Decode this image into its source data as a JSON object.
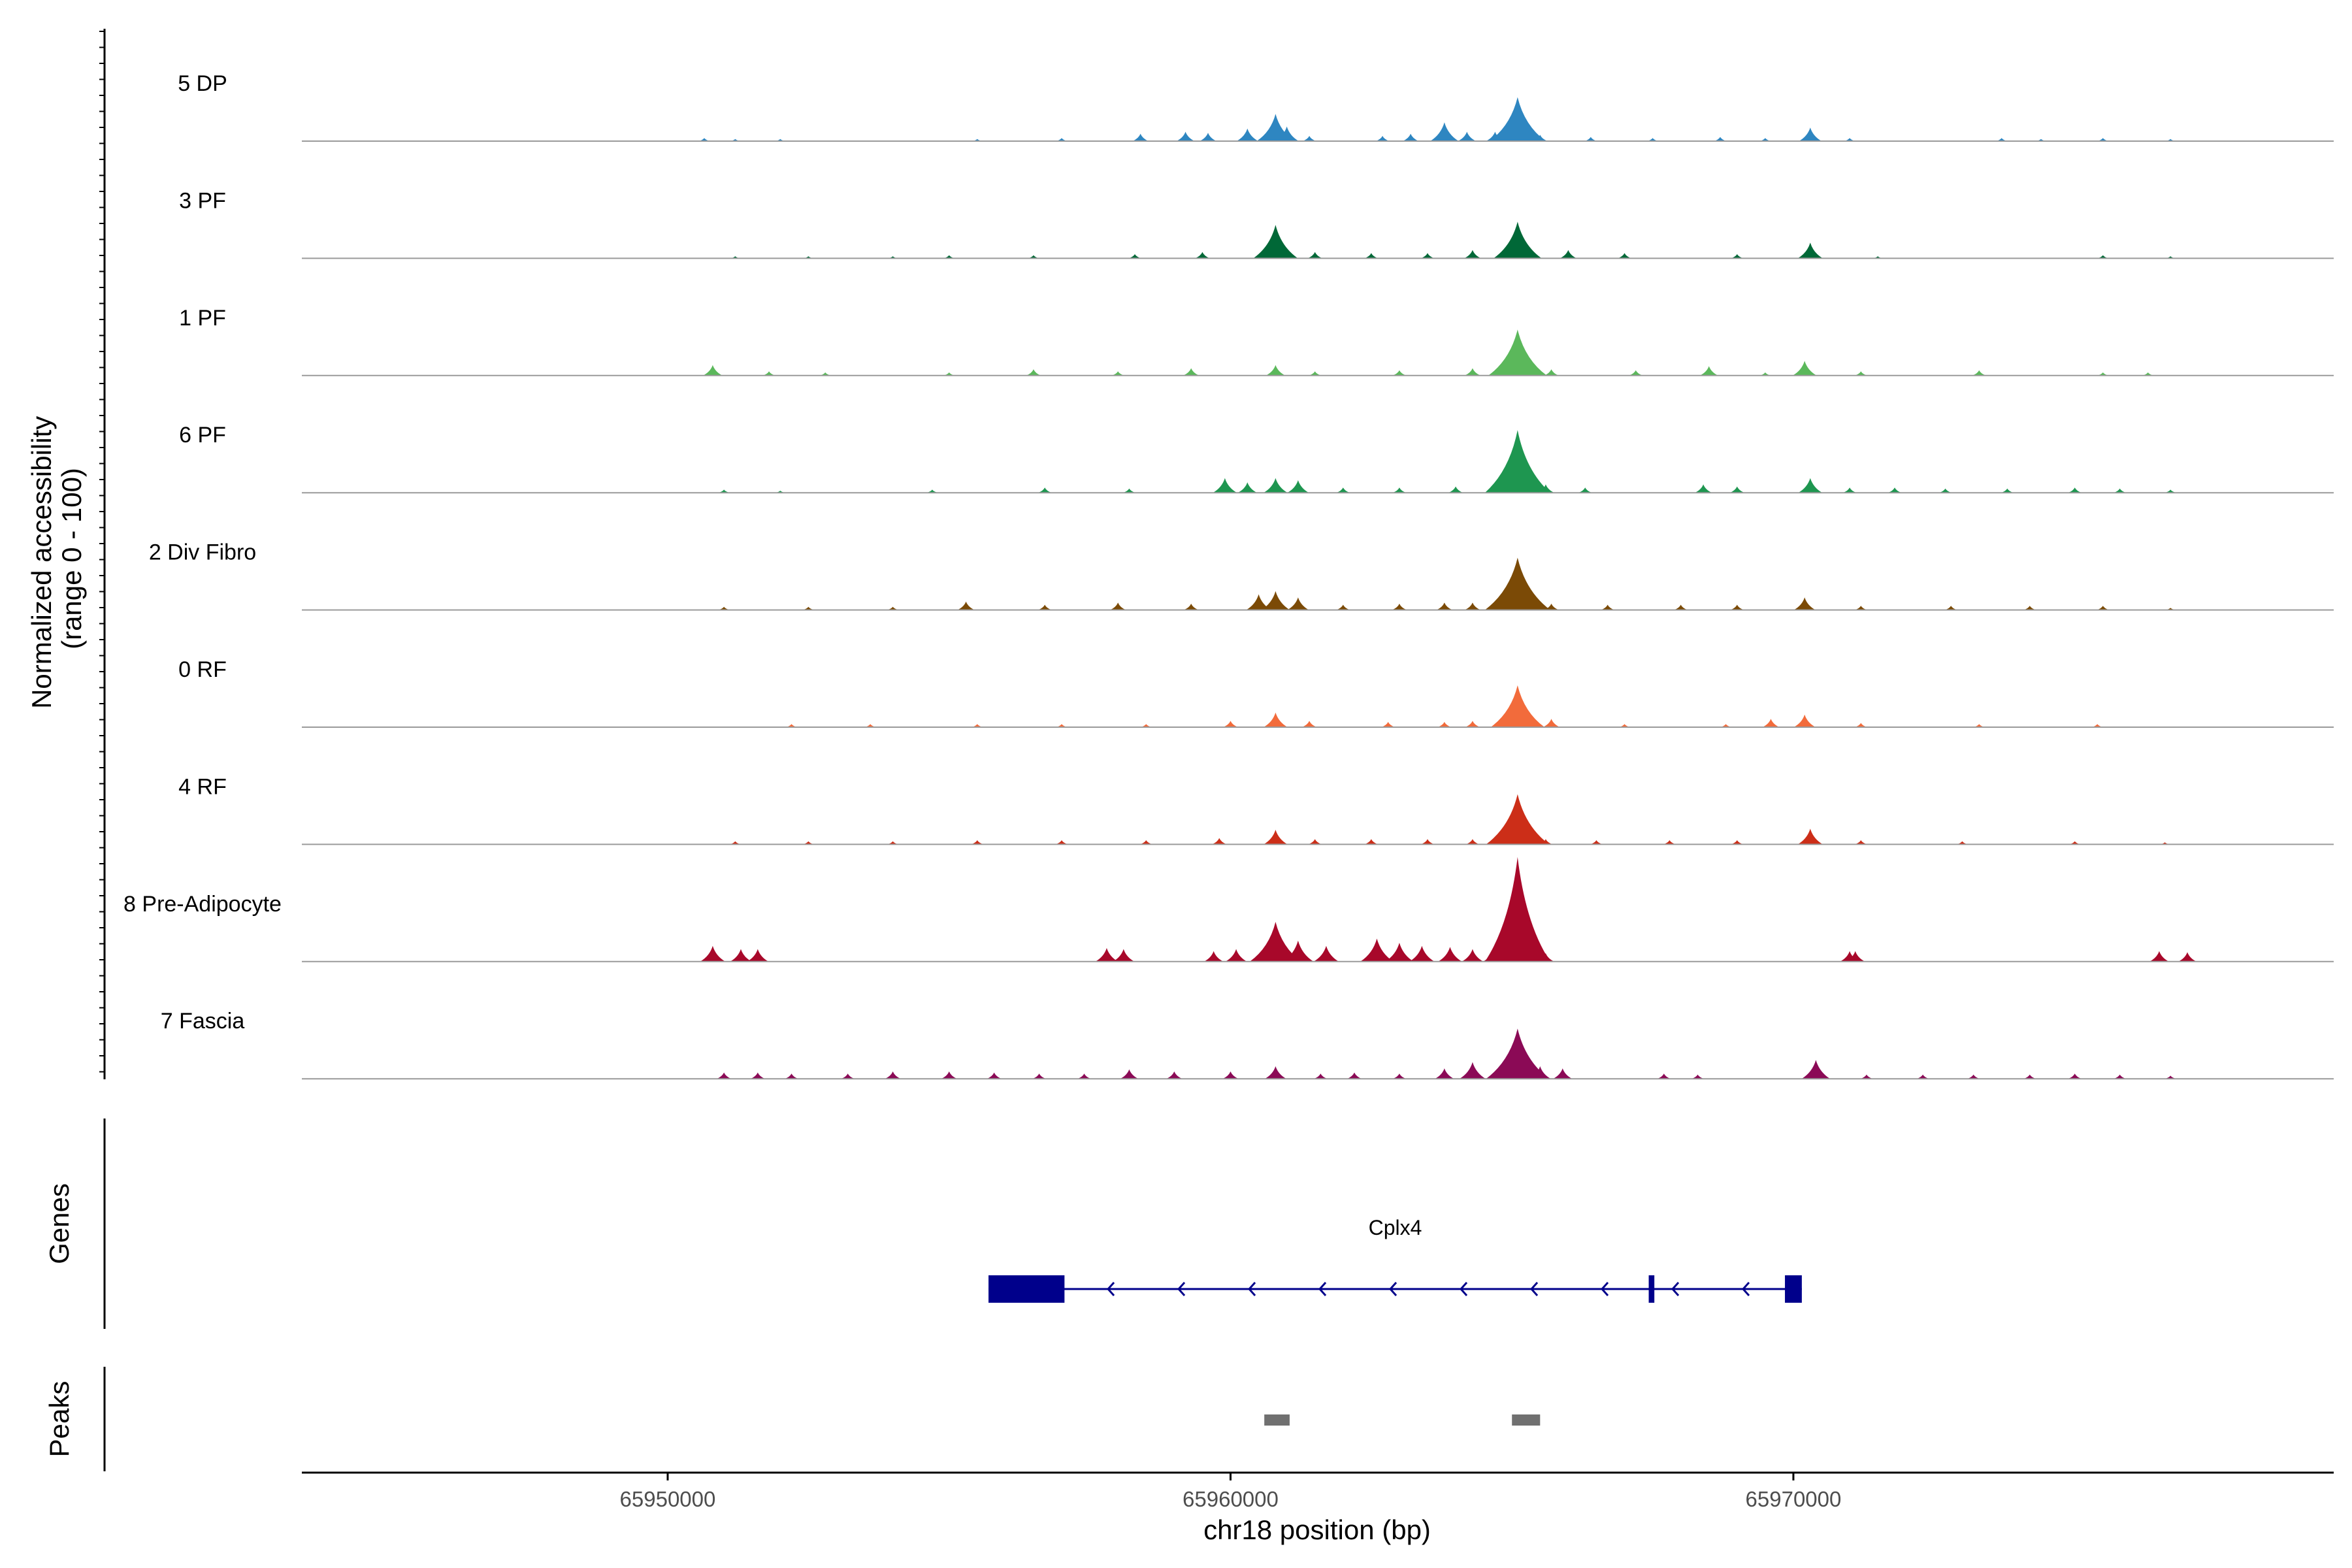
{
  "chart_data": {
    "type": "area",
    "title": "",
    "region": {
      "chrom": "chr18",
      "start": 65943500,
      "end": 65979600
    },
    "xlabel": "chr18 position (bp)",
    "xticks": [
      65950000,
      65960000,
      65970000
    ],
    "xtick_labels": [
      "65950000",
      "65960000",
      "65970000"
    ],
    "ylabel_line1": "Normalized accessibility",
    "ylabel_line2": "(range 0 - 100)",
    "ylim": [
      0,
      100
    ],
    "series": [
      {
        "name": "5 DP",
        "color": "#2E86C1",
        "points": [
          [
            65950650,
            3
          ],
          [
            65951200,
            2
          ],
          [
            65952000,
            2
          ],
          [
            65955500,
            2
          ],
          [
            65957000,
            3
          ],
          [
            65958400,
            7
          ],
          [
            65959200,
            9
          ],
          [
            65959600,
            8
          ],
          [
            65960300,
            12
          ],
          [
            65960800,
            26
          ],
          [
            65961000,
            14
          ],
          [
            65961400,
            5
          ],
          [
            65962700,
            5
          ],
          [
            65963200,
            7
          ],
          [
            65963800,
            18
          ],
          [
            65964200,
            9
          ],
          [
            65964700,
            9
          ],
          [
            65965100,
            42
          ],
          [
            65965500,
            6
          ],
          [
            65966400,
            4
          ],
          [
            65967500,
            3
          ],
          [
            65968700,
            4
          ],
          [
            65969500,
            3
          ],
          [
            65970300,
            13
          ],
          [
            65971000,
            3
          ],
          [
            65973700,
            3
          ],
          [
            65974400,
            2
          ],
          [
            65975500,
            3
          ],
          [
            65976700,
            2
          ]
        ]
      },
      {
        "name": "3 PF",
        "color": "#006837",
        "points": [
          [
            65951200,
            2
          ],
          [
            65952500,
            2
          ],
          [
            65954000,
            2
          ],
          [
            65955000,
            3
          ],
          [
            65956500,
            3
          ],
          [
            65958300,
            4
          ],
          [
            65959500,
            6
          ],
          [
            65960800,
            32
          ],
          [
            65961500,
            6
          ],
          [
            65962500,
            5
          ],
          [
            65963500,
            5
          ],
          [
            65964300,
            8
          ],
          [
            65965100,
            35
          ],
          [
            65966000,
            8
          ],
          [
            65967000,
            5
          ],
          [
            65969000,
            4
          ],
          [
            65970300,
            15
          ],
          [
            65971500,
            2
          ],
          [
            65975500,
            3
          ],
          [
            65976700,
            2
          ]
        ]
      },
      {
        "name": "1 PF",
        "color": "#5BB85B",
        "points": [
          [
            65950800,
            10
          ],
          [
            65951800,
            4
          ],
          [
            65952800,
            3
          ],
          [
            65955000,
            3
          ],
          [
            65956500,
            6
          ],
          [
            65958000,
            4
          ],
          [
            65959300,
            7
          ],
          [
            65960800,
            10
          ],
          [
            65961500,
            4
          ],
          [
            65963000,
            5
          ],
          [
            65964300,
            7
          ],
          [
            65965100,
            44
          ],
          [
            65965700,
            6
          ],
          [
            65967200,
            5
          ],
          [
            65968500,
            9
          ],
          [
            65969500,
            3
          ],
          [
            65970200,
            14
          ],
          [
            65971200,
            4
          ],
          [
            65973300,
            5
          ],
          [
            65975500,
            3
          ],
          [
            65976300,
            3
          ]
        ]
      },
      {
        "name": "6 PF",
        "color": "#1E9650",
        "points": [
          [
            65951000,
            3
          ],
          [
            65952000,
            2
          ],
          [
            65954700,
            3
          ],
          [
            65956700,
            5
          ],
          [
            65958200,
            4
          ],
          [
            65959900,
            14
          ],
          [
            65960300,
            10
          ],
          [
            65960800,
            14
          ],
          [
            65961200,
            12
          ],
          [
            65962000,
            5
          ],
          [
            65963000,
            5
          ],
          [
            65964000,
            6
          ],
          [
            65965100,
            60
          ],
          [
            65965600,
            8
          ],
          [
            65966300,
            5
          ],
          [
            65968400,
            8
          ],
          [
            65969000,
            6
          ],
          [
            65970300,
            14
          ],
          [
            65971000,
            5
          ],
          [
            65971800,
            5
          ],
          [
            65972700,
            4
          ],
          [
            65973800,
            4
          ],
          [
            65975000,
            5
          ],
          [
            65975800,
            4
          ],
          [
            65976700,
            3
          ]
        ]
      },
      {
        "name": "2 Div Fibro",
        "color": "#7B4A06",
        "points": [
          [
            65951000,
            3
          ],
          [
            65952500,
            3
          ],
          [
            65954000,
            3
          ],
          [
            65955300,
            8
          ],
          [
            65956700,
            5
          ],
          [
            65958000,
            7
          ],
          [
            65959300,
            6
          ],
          [
            65960500,
            15
          ],
          [
            65960800,
            18
          ],
          [
            65961200,
            12
          ],
          [
            65962000,
            5
          ],
          [
            65963000,
            6
          ],
          [
            65963800,
            7
          ],
          [
            65964300,
            7
          ],
          [
            65965100,
            50
          ],
          [
            65965700,
            6
          ],
          [
            65966700,
            5
          ],
          [
            65968000,
            5
          ],
          [
            65969000,
            5
          ],
          [
            65970200,
            12
          ],
          [
            65971200,
            4
          ],
          [
            65972800,
            4
          ],
          [
            65974200,
            4
          ],
          [
            65975500,
            4
          ],
          [
            65976700,
            2
          ]
        ]
      },
      {
        "name": "0 RF",
        "color": "#F26B3B",
        "points": [
          [
            65952200,
            3
          ],
          [
            65953600,
            3
          ],
          [
            65955500,
            3
          ],
          [
            65957000,
            3
          ],
          [
            65958500,
            3
          ],
          [
            65960000,
            6
          ],
          [
            65960800,
            14
          ],
          [
            65961400,
            6
          ],
          [
            65962800,
            5
          ],
          [
            65963800,
            5
          ],
          [
            65964300,
            6
          ],
          [
            65965100,
            40
          ],
          [
            65965700,
            8
          ],
          [
            65967000,
            3
          ],
          [
            65968800,
            3
          ],
          [
            65969600,
            8
          ],
          [
            65970200,
            12
          ],
          [
            65971200,
            4
          ],
          [
            65973300,
            3
          ],
          [
            65975400,
            3
          ]
        ]
      },
      {
        "name": "4 RF",
        "color": "#CC2E18",
        "points": [
          [
            65951200,
            3
          ],
          [
            65952500,
            3
          ],
          [
            65954000,
            3
          ],
          [
            65955500,
            4
          ],
          [
            65957000,
            4
          ],
          [
            65958500,
            4
          ],
          [
            65959800,
            6
          ],
          [
            65960800,
            14
          ],
          [
            65961500,
            5
          ],
          [
            65962500,
            5
          ],
          [
            65963500,
            5
          ],
          [
            65964300,
            5
          ],
          [
            65965100,
            48
          ],
          [
            65965600,
            5
          ],
          [
            65966500,
            4
          ],
          [
            65967800,
            4
          ],
          [
            65969000,
            4
          ],
          [
            65970300,
            15
          ],
          [
            65971200,
            4
          ],
          [
            65973000,
            3
          ],
          [
            65975000,
            3
          ],
          [
            65976600,
            2
          ]
        ]
      },
      {
        "name": "8 Pre-Adipocyte",
        "color": "#A8082A",
        "points": [
          [
            65950800,
            15
          ],
          [
            65951300,
            12
          ],
          [
            65951600,
            12
          ],
          [
            65957800,
            13
          ],
          [
            65958100,
            12
          ],
          [
            65959700,
            10
          ],
          [
            65960100,
            12
          ],
          [
            65960800,
            38
          ],
          [
            65961200,
            20
          ],
          [
            65961700,
            15
          ],
          [
            65962600,
            22
          ],
          [
            65963000,
            18
          ],
          [
            65963400,
            15
          ],
          [
            65963900,
            14
          ],
          [
            65964300,
            12
          ],
          [
            65964700,
            14
          ],
          [
            65965100,
            100
          ],
          [
            65965600,
            8
          ],
          [
            65971000,
            10
          ],
          [
            65971100,
            10
          ],
          [
            65976500,
            10
          ],
          [
            65977000,
            9
          ]
        ]
      },
      {
        "name": "7 Fascia",
        "color": "#8B0A56",
        "points": [
          [
            65951000,
            6
          ],
          [
            65951600,
            6
          ],
          [
            65952200,
            5
          ],
          [
            65953200,
            5
          ],
          [
            65954000,
            7
          ],
          [
            65955000,
            7
          ],
          [
            65955800,
            6
          ],
          [
            65956600,
            5
          ],
          [
            65957400,
            5
          ],
          [
            65958200,
            9
          ],
          [
            65959000,
            7
          ],
          [
            65960000,
            7
          ],
          [
            65960800,
            12
          ],
          [
            65961600,
            5
          ],
          [
            65962200,
            6
          ],
          [
            65963000,
            5
          ],
          [
            65963800,
            10
          ],
          [
            65964300,
            16
          ],
          [
            65965100,
            48
          ],
          [
            65965500,
            12
          ],
          [
            65965900,
            10
          ],
          [
            65967700,
            5
          ],
          [
            65968300,
            4
          ],
          [
            65970400,
            18
          ],
          [
            65971300,
            4
          ],
          [
            65972300,
            4
          ],
          [
            65973200,
            4
          ],
          [
            65974200,
            4
          ],
          [
            65975000,
            5
          ],
          [
            65975800,
            4
          ],
          [
            65976700,
            3
          ]
        ]
      }
    ],
    "genes": [
      {
        "name": "Cplx4",
        "strand": "-",
        "start": 65955700,
        "end": 65970150,
        "exons": [
          [
            65955700,
            65957050
          ],
          [
            65967430,
            65967530
          ],
          [
            65969850,
            65970150
          ]
        ]
      }
    ],
    "peaks": [
      [
        65960600,
        65961050
      ],
      [
        65965000,
        65965500
      ]
    ],
    "track_titles": {
      "genes": "Genes",
      "peaks": "Peaks"
    },
    "colors": {
      "gene": "#00008B",
      "peak": "#707070",
      "baseline": "#9a9a9a"
    }
  }
}
